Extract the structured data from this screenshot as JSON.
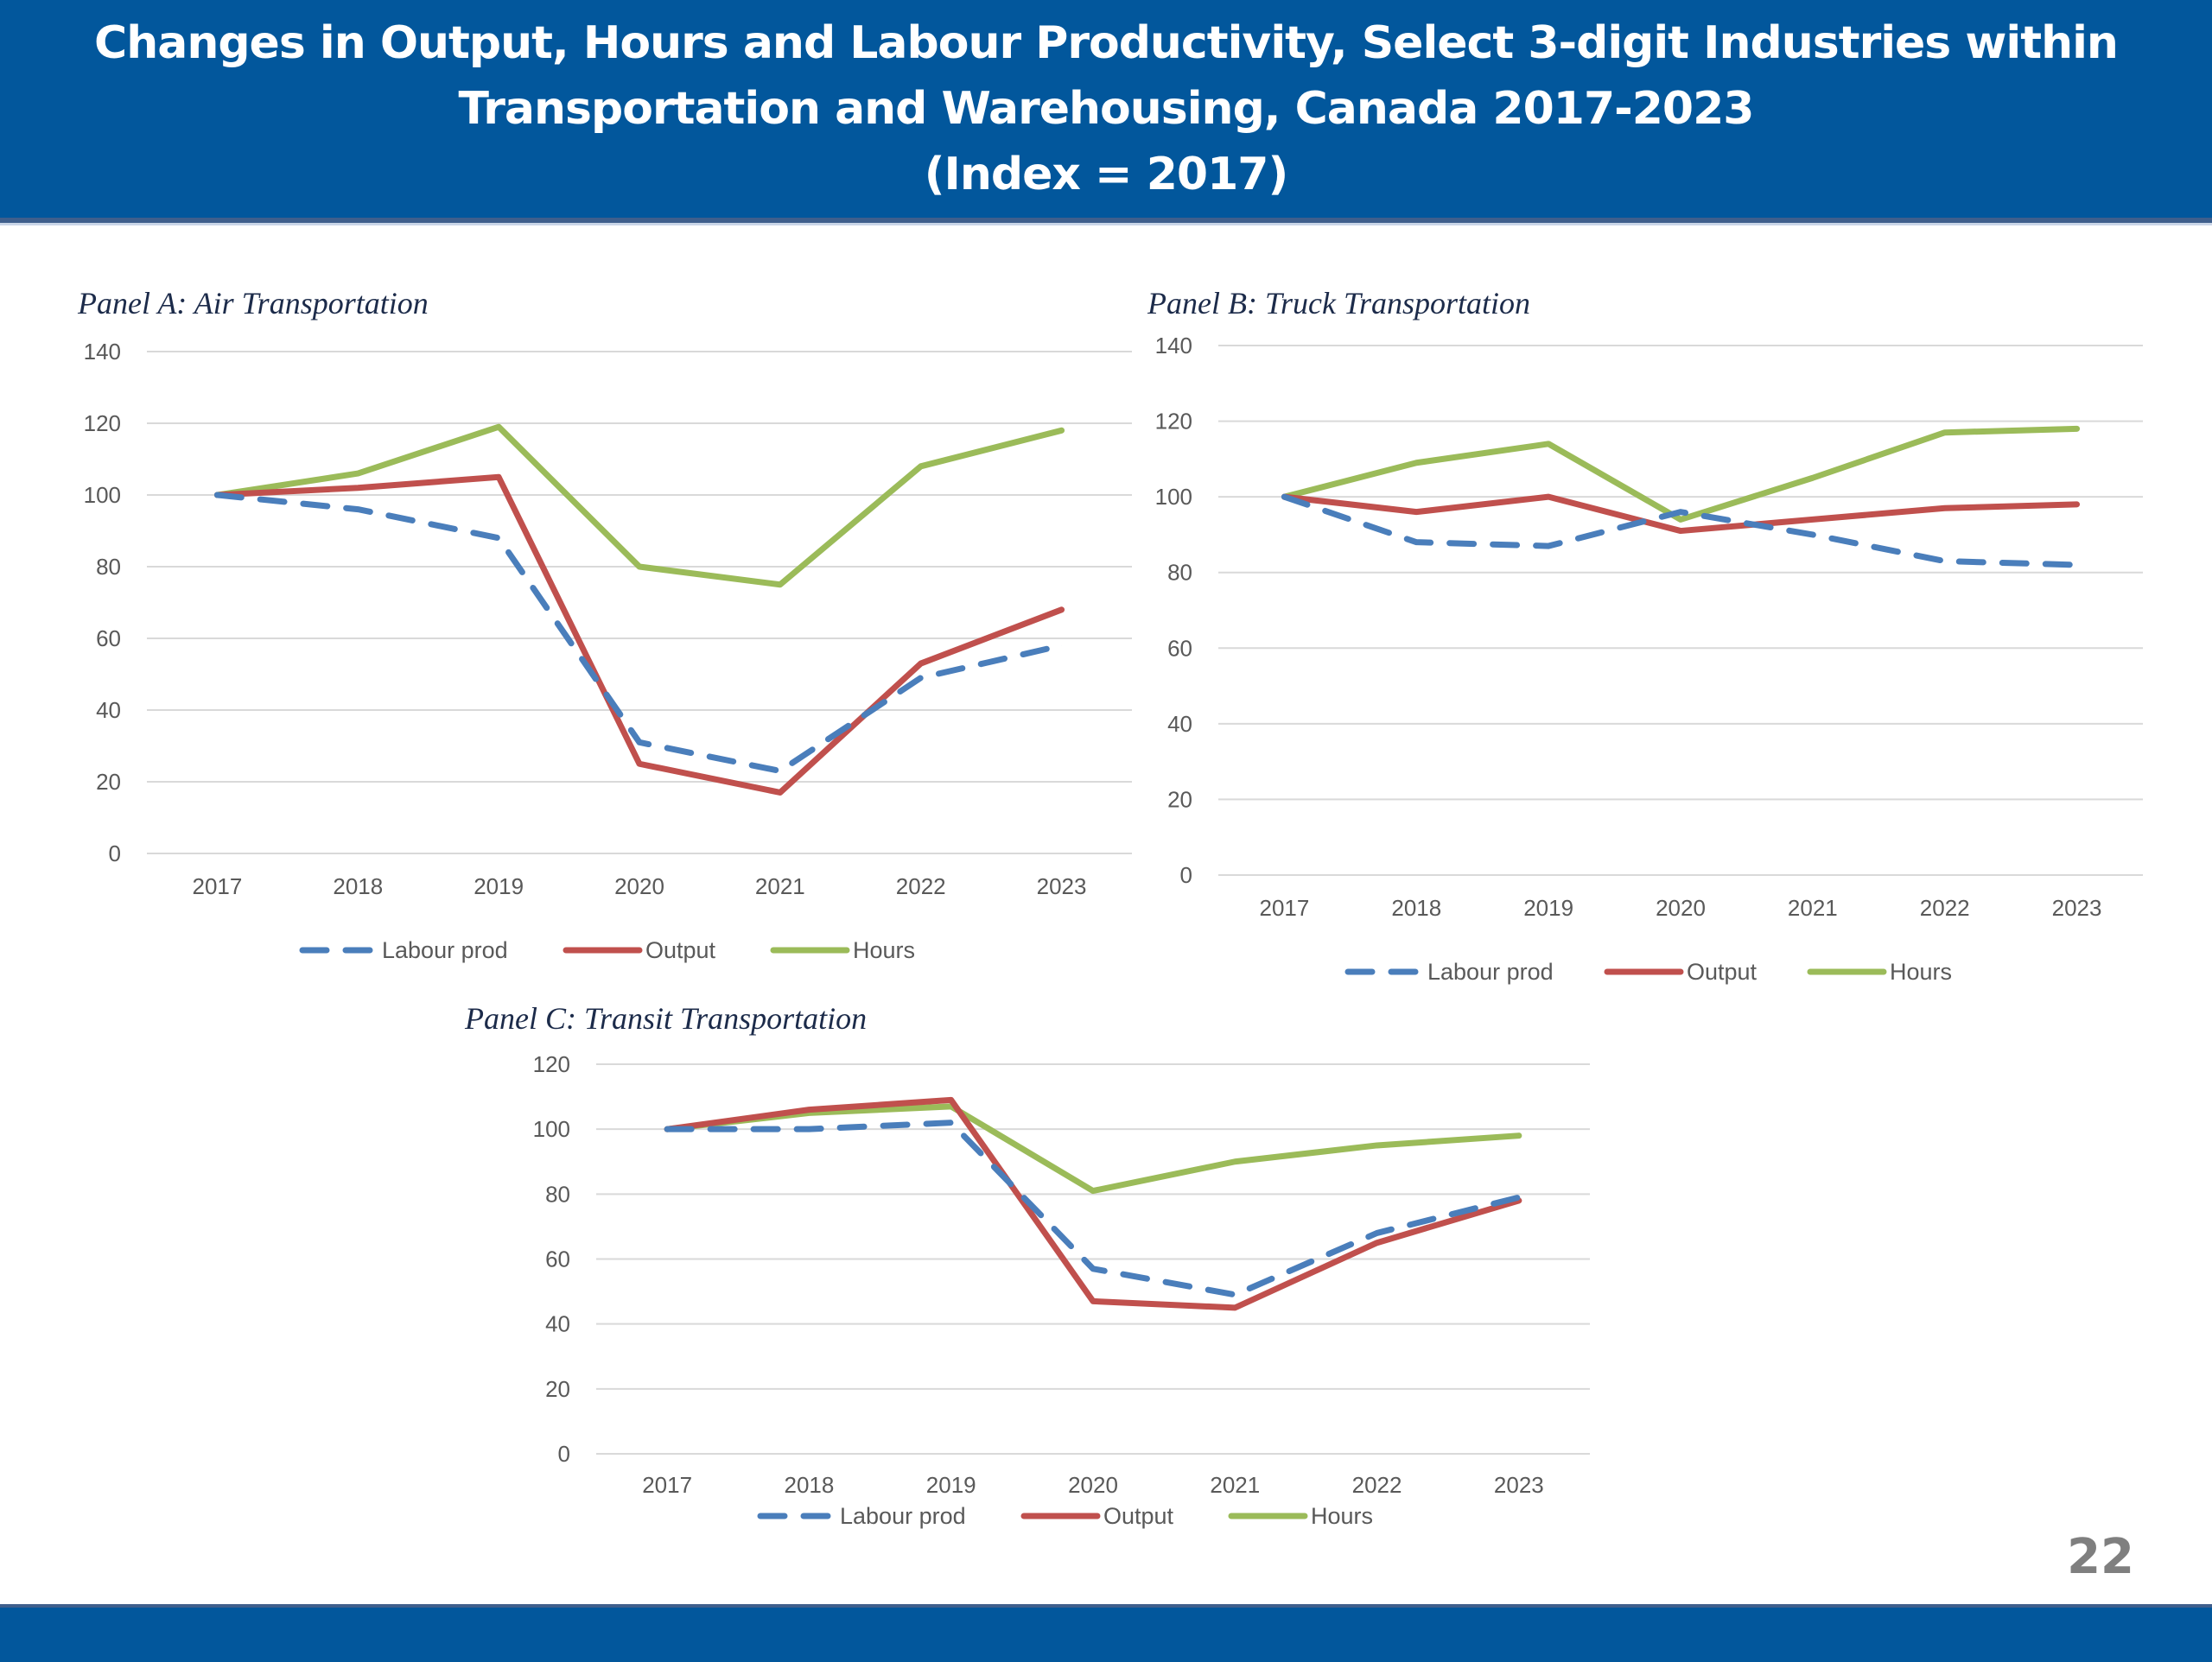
{
  "header": {
    "title_line1": "Changes in Output, Hours and Labour Productivity, Select 3-digit Industries within",
    "title_line2": "Transportation and Warehousing, Canada 2017-2023",
    "title_line3": "(Index = 2017)"
  },
  "page_number": "22",
  "colors": {
    "brand_blue": "#02579c",
    "labour_prod": "#4a7ebb",
    "output": "#c0504d",
    "hours": "#9bbb59"
  },
  "chart_data": [
    {
      "type": "line",
      "title": "Panel A: Air Transportation",
      "xlabel": "",
      "ylabel": "",
      "categories": [
        "2017",
        "2018",
        "2019",
        "2020",
        "2021",
        "2022",
        "2023"
      ],
      "ylim": [
        0,
        140
      ],
      "yticks": [
        0,
        20,
        40,
        60,
        80,
        100,
        120,
        140
      ],
      "grid": true,
      "legend": "bottom",
      "series": [
        {
          "name": "Labour prod",
          "style": "dashed",
          "values": [
            100,
            96,
            88,
            31,
            23,
            49,
            58
          ]
        },
        {
          "name": "Output",
          "style": "solid",
          "values": [
            100,
            102,
            105,
            25,
            17,
            53,
            68
          ]
        },
        {
          "name": "Hours",
          "style": "solid",
          "values": [
            100,
            106,
            119,
            80,
            75,
            108,
            118
          ]
        }
      ]
    },
    {
      "type": "line",
      "title": "Panel B: Truck Transportation",
      "xlabel": "",
      "ylabel": "",
      "categories": [
        "2017",
        "2018",
        "2019",
        "2020",
        "2021",
        "2022",
        "2023"
      ],
      "ylim": [
        0,
        140
      ],
      "yticks": [
        0,
        20,
        40,
        60,
        80,
        100,
        120,
        140
      ],
      "grid": true,
      "legend": "bottom",
      "series": [
        {
          "name": "Labour prod",
          "style": "dashed",
          "values": [
            100,
            88,
            87,
            96,
            90,
            83,
            82
          ]
        },
        {
          "name": "Output",
          "style": "solid",
          "values": [
            100,
            96,
            100,
            91,
            94,
            97,
            98
          ]
        },
        {
          "name": "Hours",
          "style": "solid",
          "values": [
            100,
            109,
            114,
            94,
            105,
            117,
            118
          ]
        }
      ]
    },
    {
      "type": "line",
      "title": "Panel C: Transit Transportation",
      "xlabel": "",
      "ylabel": "",
      "categories": [
        "2017",
        "2018",
        "2019",
        "2020",
        "2021",
        "2022",
        "2023"
      ],
      "ylim": [
        0,
        120
      ],
      "yticks": [
        0,
        20,
        40,
        60,
        80,
        100,
        120
      ],
      "grid": true,
      "legend": "bottom",
      "series": [
        {
          "name": "Labour prod",
          "style": "dashed",
          "values": [
            100,
            100,
            102,
            57,
            49,
            68,
            79
          ]
        },
        {
          "name": "Output",
          "style": "solid",
          "values": [
            100,
            106,
            109,
            47,
            45,
            65,
            78
          ]
        },
        {
          "name": "Hours",
          "style": "solid",
          "values": [
            100,
            105,
            107,
            81,
            90,
            95,
            98
          ]
        }
      ]
    }
  ]
}
